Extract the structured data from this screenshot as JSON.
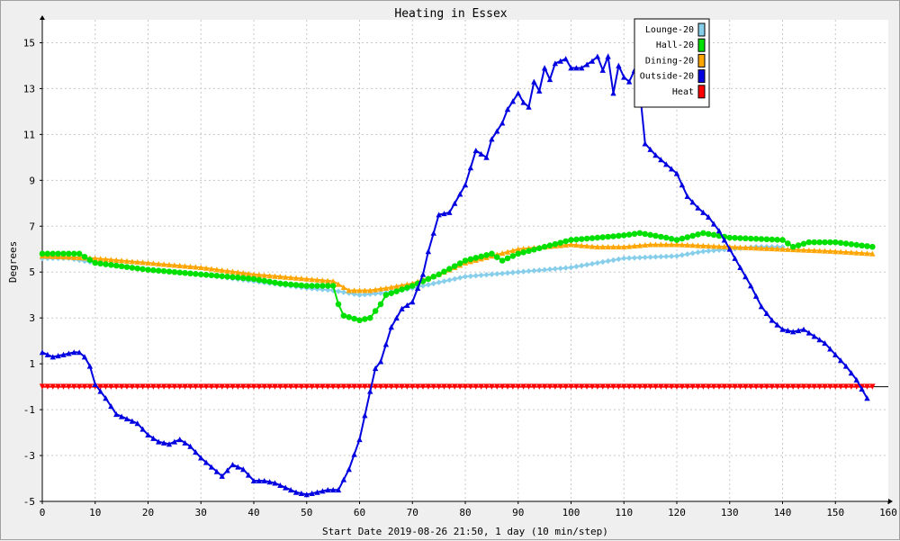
{
  "chart_data": {
    "type": "line",
    "title": "Heating in Essex",
    "xlabel": "Start Date 2019-08-26 21:50, 1 day (10 min/step)",
    "ylabel": "Degrees",
    "xlim": [
      0,
      160
    ],
    "ylim": [
      -5,
      16
    ],
    "xticks": [
      0,
      10,
      20,
      30,
      40,
      50,
      60,
      70,
      80,
      90,
      100,
      110,
      120,
      130,
      140,
      150,
      160
    ],
    "yticks": [
      -5,
      -3,
      -1,
      1,
      3,
      5,
      7,
      9,
      11,
      13,
      15
    ],
    "grid": true,
    "legend_position": "top-right",
    "series": [
      {
        "name": "Lounge-20",
        "color": "#87ceeb",
        "marker": "diamond",
        "points": [
          [
            0,
            5.6
          ],
          [
            5,
            5.6
          ],
          [
            10,
            5.4
          ],
          [
            20,
            5.1
          ],
          [
            30,
            4.9
          ],
          [
            40,
            4.6
          ],
          [
            50,
            4.3
          ],
          [
            55,
            4.2
          ],
          [
            60,
            4.0
          ],
          [
            65,
            4.1
          ],
          [
            70,
            4.3
          ],
          [
            80,
            4.8
          ],
          [
            90,
            5.0
          ],
          [
            100,
            5.2
          ],
          [
            110,
            5.6
          ],
          [
            120,
            5.7
          ],
          [
            125,
            5.9
          ],
          [
            130,
            6.0
          ],
          [
            135,
            6.1
          ],
          [
            140,
            6.1
          ]
        ]
      },
      {
        "name": "Hall-20",
        "color": "#00e000",
        "marker": "circle",
        "points": [
          [
            0,
            5.8
          ],
          [
            7,
            5.8
          ],
          [
            10,
            5.4
          ],
          [
            20,
            5.1
          ],
          [
            30,
            4.9
          ],
          [
            40,
            4.7
          ],
          [
            45,
            4.5
          ],
          [
            50,
            4.4
          ],
          [
            55,
            4.4
          ],
          [
            56,
            3.6
          ],
          [
            57,
            3.1
          ],
          [
            60,
            2.9
          ],
          [
            62,
            3.0
          ],
          [
            64,
            3.6
          ],
          [
            65,
            4.0
          ],
          [
            70,
            4.4
          ],
          [
            75,
            4.9
          ],
          [
            80,
            5.5
          ],
          [
            85,
            5.8
          ],
          [
            87,
            5.5
          ],
          [
            90,
            5.8
          ],
          [
            100,
            6.4
          ],
          [
            110,
            6.6
          ],
          [
            113,
            6.7
          ],
          [
            118,
            6.5
          ],
          [
            120,
            6.4
          ],
          [
            125,
            6.7
          ],
          [
            130,
            6.5
          ],
          [
            140,
            6.4
          ],
          [
            142,
            6.1
          ],
          [
            145,
            6.3
          ],
          [
            150,
            6.3
          ],
          [
            157,
            6.1
          ]
        ]
      },
      {
        "name": "Dining-20",
        "color": "#ffa500",
        "marker": "triangle-up",
        "points": [
          [
            0,
            5.7
          ],
          [
            10,
            5.6
          ],
          [
            20,
            5.4
          ],
          [
            30,
            5.2
          ],
          [
            40,
            4.9
          ],
          [
            50,
            4.7
          ],
          [
            55,
            4.6
          ],
          [
            58,
            4.2
          ],
          [
            62,
            4.2
          ],
          [
            65,
            4.3
          ],
          [
            70,
            4.5
          ],
          [
            75,
            4.9
          ],
          [
            80,
            5.4
          ],
          [
            90,
            6.0
          ],
          [
            100,
            6.2
          ],
          [
            105,
            6.1
          ],
          [
            110,
            6.1
          ],
          [
            115,
            6.2
          ],
          [
            120,
            6.2
          ],
          [
            130,
            6.1
          ],
          [
            140,
            6.0
          ],
          [
            150,
            5.9
          ],
          [
            157,
            5.8
          ]
        ]
      },
      {
        "name": "Outside-20",
        "color": "#0000e0",
        "marker": "triangle-up",
        "points": [
          [
            0,
            1.5
          ],
          [
            2,
            1.3
          ],
          [
            4,
            1.4
          ],
          [
            6,
            1.5
          ],
          [
            7,
            1.5
          ],
          [
            8,
            1.3
          ],
          [
            9,
            0.9
          ],
          [
            10,
            0.1
          ],
          [
            12,
            -0.5
          ],
          [
            14,
            -1.2
          ],
          [
            16,
            -1.4
          ],
          [
            18,
            -1.6
          ],
          [
            20,
            -2.1
          ],
          [
            22,
            -2.4
          ],
          [
            24,
            -2.5
          ],
          [
            26,
            -2.3
          ],
          [
            28,
            -2.6
          ],
          [
            30,
            -3.1
          ],
          [
            32,
            -3.5
          ],
          [
            34,
            -3.9
          ],
          [
            36,
            -3.4
          ],
          [
            38,
            -3.6
          ],
          [
            40,
            -4.1
          ],
          [
            42,
            -4.1
          ],
          [
            44,
            -4.2
          ],
          [
            46,
            -4.4
          ],
          [
            48,
            -4.6
          ],
          [
            50,
            -4.7
          ],
          [
            52,
            -4.6
          ],
          [
            54,
            -4.5
          ],
          [
            56,
            -4.5
          ],
          [
            58,
            -3.6
          ],
          [
            60,
            -2.3
          ],
          [
            62,
            -0.2
          ],
          [
            63,
            0.8
          ],
          [
            64,
            1.1
          ],
          [
            66,
            2.6
          ],
          [
            68,
            3.4
          ],
          [
            70,
            3.7
          ],
          [
            72,
            4.9
          ],
          [
            73,
            5.9
          ],
          [
            75,
            7.5
          ],
          [
            77,
            7.6
          ],
          [
            80,
            8.8
          ],
          [
            82,
            10.3
          ],
          [
            84,
            10.0
          ],
          [
            85,
            10.8
          ],
          [
            87,
            11.5
          ],
          [
            88,
            12.1
          ],
          [
            90,
            12.8
          ],
          [
            91,
            12.4
          ],
          [
            92,
            12.2
          ],
          [
            93,
            13.3
          ],
          [
            94,
            12.9
          ],
          [
            95,
            13.9
          ],
          [
            96,
            13.4
          ],
          [
            97,
            14.1
          ],
          [
            99,
            14.3
          ],
          [
            100,
            13.9
          ],
          [
            102,
            13.9
          ],
          [
            104,
            14.2
          ],
          [
            105,
            14.4
          ],
          [
            106,
            13.8
          ],
          [
            107,
            14.4
          ],
          [
            108,
            12.8
          ],
          [
            109,
            14.0
          ],
          [
            110,
            13.5
          ],
          [
            111,
            13.3
          ],
          [
            112,
            13.8
          ],
          [
            113,
            12.9
          ],
          [
            114,
            10.6
          ],
          [
            116,
            10.1
          ],
          [
            118,
            9.7
          ],
          [
            120,
            9.3
          ],
          [
            122,
            8.3
          ],
          [
            124,
            7.8
          ],
          [
            126,
            7.4
          ],
          [
            128,
            6.8
          ],
          [
            130,
            6.0
          ],
          [
            132,
            5.2
          ],
          [
            134,
            4.4
          ],
          [
            136,
            3.5
          ],
          [
            138,
            2.9
          ],
          [
            140,
            2.5
          ],
          [
            142,
            2.4
          ],
          [
            144,
            2.5
          ],
          [
            146,
            2.2
          ],
          [
            148,
            1.9
          ],
          [
            150,
            1.4
          ],
          [
            152,
            0.9
          ],
          [
            154,
            0.3
          ],
          [
            156,
            -0.5
          ]
        ]
      },
      {
        "name": "Heat",
        "color": "#ff0000",
        "marker": "triangle-down",
        "points": [
          [
            0,
            0
          ],
          [
            157,
            0
          ]
        ]
      }
    ]
  }
}
